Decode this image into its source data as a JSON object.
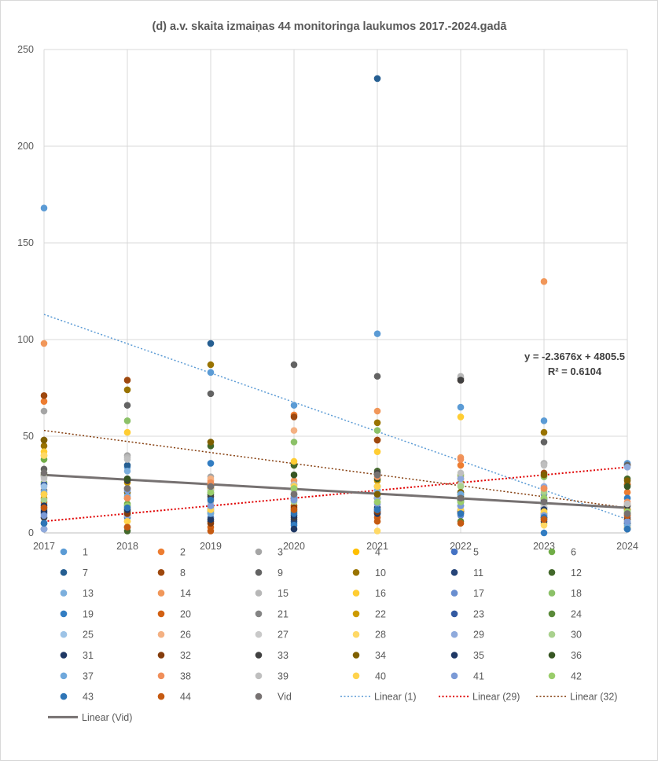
{
  "chart_data": {
    "type": "scatter",
    "title": "(d) a.v. skaita izmaiņas 44 monitoringa laukumos 2017.-2024.gadā",
    "xlabel": "",
    "ylabel": "",
    "x": [
      2017,
      2018,
      2019,
      2020,
      2021,
      2022,
      2023,
      2024
    ],
    "xlim": [
      2017,
      2024
    ],
    "ylim": [
      0,
      250
    ],
    "yticks": [
      0,
      50,
      100,
      150,
      200,
      250
    ],
    "xticks": [
      2017,
      2018,
      2019,
      2020,
      2021,
      2022,
      2023,
      2024
    ],
    "grid": "vertical and horizontal",
    "legend_placement": "bottom",
    "series": [
      {
        "name": "1",
        "color": "#5b9bd5",
        "values": [
          168,
          34,
          83,
          66,
          103,
          65,
          58,
          36
        ]
      },
      {
        "name": "2",
        "color": "#ed7d31",
        "values": [
          68,
          18,
          25,
          61,
          48,
          35,
          23,
          21
        ]
      },
      {
        "name": "3",
        "color": "#a5a5a5",
        "values": [
          63,
          40,
          29,
          25,
          30,
          29,
          36,
          12
        ]
      },
      {
        "name": "4",
        "color": "#ffc000",
        "values": [
          40,
          6,
          10,
          14,
          20,
          30,
          5,
          4
        ]
      },
      {
        "name": "5",
        "color": "#4472c4",
        "values": [
          10,
          14,
          8,
          5,
          11,
          12,
          13,
          3
        ]
      },
      {
        "name": "6",
        "color": "#70ad47",
        "values": [
          38,
          15,
          21,
          20,
          18,
          16,
          15,
          2
        ]
      },
      {
        "name": "7",
        "color": "#255e91",
        "values": [
          20,
          35,
          98,
          6,
          235,
          14,
          8,
          10
        ]
      },
      {
        "name": "8",
        "color": "#9e480e",
        "values": [
          71,
          79,
          23,
          60,
          48,
          79,
          31,
          35
        ]
      },
      {
        "name": "9",
        "color": "#636363",
        "values": [
          33,
          66,
          72,
          87,
          81,
          80,
          47,
          35
        ]
      },
      {
        "name": "10",
        "color": "#997300",
        "values": [
          45,
          74,
          87,
          35,
          57,
          26,
          52,
          25
        ]
      },
      {
        "name": "11",
        "color": "#264478",
        "values": [
          2,
          9,
          12,
          7,
          12,
          10,
          6,
          2
        ]
      },
      {
        "name": "12",
        "color": "#43682b",
        "values": [
          5,
          1,
          45,
          35,
          32,
          20,
          15,
          28
        ]
      },
      {
        "name": "13",
        "color": "#7cafdd",
        "values": [
          15,
          32,
          20,
          17,
          22,
          18,
          13,
          9
        ]
      },
      {
        "name": "14",
        "color": "#f1975a",
        "values": [
          98,
          18,
          27,
          27,
          63,
          39,
          130,
          15
        ]
      },
      {
        "name": "15",
        "color": "#b7b7b7",
        "values": [
          29,
          39,
          16,
          23,
          31,
          81,
          36,
          10
        ]
      },
      {
        "name": "16",
        "color": "#ffcd33",
        "values": [
          42,
          52,
          23,
          37,
          42,
          60,
          20,
          3
        ]
      },
      {
        "name": "17",
        "color": "#698ed0",
        "values": [
          8,
          11,
          18,
          17,
          10,
          9,
          20,
          2
        ]
      },
      {
        "name": "18",
        "color": "#8cc168",
        "values": [
          26,
          58,
          22,
          47,
          53,
          30,
          29,
          10
        ]
      },
      {
        "name": "19",
        "color": "#327dc2",
        "values": [
          12,
          8,
          36,
          4,
          20,
          21,
          0,
          18
        ]
      },
      {
        "name": "20",
        "color": "#d26012",
        "values": [
          16,
          10,
          3,
          14,
          8,
          28,
          9,
          25
        ]
      },
      {
        "name": "21",
        "color": "#848484",
        "values": [
          22,
          23,
          13,
          20,
          18,
          16,
          10,
          12
        ]
      },
      {
        "name": "22",
        "color": "#cc9a00",
        "values": [
          18,
          26,
          11,
          23,
          27,
          18,
          10,
          12
        ]
      },
      {
        "name": "23",
        "color": "#335aa1",
        "values": [
          25,
          28,
          24,
          18,
          24,
          17,
          16,
          8
        ]
      },
      {
        "name": "24",
        "color": "#5a8a39",
        "values": [
          13,
          11,
          20,
          11,
          18,
          6,
          8,
          7
        ]
      },
      {
        "name": "25",
        "color": "#9dc3e6",
        "values": [
          24,
          20,
          12,
          22,
          16,
          14,
          10,
          6
        ]
      },
      {
        "name": "26",
        "color": "#f4b183",
        "values": [
          30,
          13,
          28,
          53,
          16,
          28,
          22,
          14
        ]
      },
      {
        "name": "27",
        "color": "#c9c9c9",
        "values": [
          28,
          22,
          14,
          21,
          16,
          25,
          14,
          11
        ]
      },
      {
        "name": "28",
        "color": "#ffd966",
        "values": [
          40,
          9,
          7,
          12,
          1,
          18,
          4,
          3
        ]
      },
      {
        "name": "29",
        "color": "#8faadc",
        "values": [
          2,
          9,
          12,
          12,
          18,
          28,
          24,
          34
        ]
      },
      {
        "name": "30",
        "color": "#a9d18e",
        "values": [
          17,
          12,
          10,
          16,
          24,
          24,
          21,
          6
        ]
      },
      {
        "name": "31",
        "color": "#1f3864",
        "values": [
          11,
          3,
          6,
          2,
          10,
          11,
          7,
          5
        ]
      },
      {
        "name": "32",
        "color": "#843c0c",
        "values": [
          48,
          10,
          5,
          13,
          11,
          11,
          8,
          7
        ]
      },
      {
        "name": "33",
        "color": "#404040",
        "values": [
          8,
          27,
          19,
          8,
          31,
          79,
          17,
          14
        ]
      },
      {
        "name": "34",
        "color": "#7f6000",
        "values": [
          48,
          21,
          47,
          23,
          20,
          21,
          30,
          27
        ]
      },
      {
        "name": "35",
        "color": "#1f3864",
        "values": [
          14,
          12,
          7,
          9,
          13,
          17,
          12,
          5
        ]
      },
      {
        "name": "36",
        "color": "#375623",
        "values": [
          30,
          28,
          24,
          30,
          28,
          19,
          18,
          24
        ]
      },
      {
        "name": "37",
        "color": "#6fa8dc",
        "values": [
          21,
          19,
          10,
          19,
          12,
          20,
          16,
          4
        ]
      },
      {
        "name": "38",
        "color": "#f08f5a",
        "values": [
          20,
          18,
          26,
          25,
          29,
          38,
          23,
          16
        ]
      },
      {
        "name": "39",
        "color": "#bfbfbf",
        "values": [
          29,
          38,
          22,
          25,
          30,
          31,
          35,
          15
        ]
      },
      {
        "name": "40",
        "color": "#ffd34d",
        "values": [
          20,
          6,
          12,
          24,
          24,
          12,
          11,
          10
        ]
      },
      {
        "name": "41",
        "color": "#7b9ad6",
        "values": [
          9,
          22,
          14,
          17,
          15,
          14,
          9,
          6
        ]
      },
      {
        "name": "42",
        "color": "#9acd6b",
        "values": [
          31,
          14,
          21,
          23,
          16,
          16,
          18,
          11
        ]
      },
      {
        "name": "43",
        "color": "#2e75b6",
        "values": [
          5,
          13,
          17,
          10,
          12,
          10,
          8,
          2
        ]
      },
      {
        "name": "44",
        "color": "#c55a11",
        "values": [
          13,
          3,
          1,
          12,
          6,
          5,
          7,
          9
        ]
      },
      {
        "name": "Vid",
        "color": "#767171",
        "values": [
          31,
          23,
          24,
          20,
          30,
          18,
          16,
          10
        ]
      }
    ],
    "trendlines": [
      {
        "name": "Linear (1)",
        "color": "#5b9bd5",
        "style": "dotted",
        "width": 1.5,
        "start": [
          2017,
          113
        ],
        "end": [
          2024,
          7
        ]
      },
      {
        "name": "Linear (29)",
        "color": "#e00000",
        "style": "dotted",
        "width": 2,
        "start": [
          2017,
          6
        ],
        "end": [
          2024,
          34
        ]
      },
      {
        "name": "Linear (32)",
        "color": "#843c0c",
        "style": "dotted",
        "width": 1.5,
        "start": [
          2017,
          53
        ],
        "end": [
          2024,
          13
        ]
      },
      {
        "name": "Linear (Vid)",
        "color": "#767171",
        "style": "solid",
        "width": 3,
        "start": [
          2017,
          30
        ],
        "end": [
          2024,
          13
        ]
      }
    ],
    "annotations": [
      "y = -2.3676x + 4805.5",
      "R² = 0.6104"
    ]
  }
}
